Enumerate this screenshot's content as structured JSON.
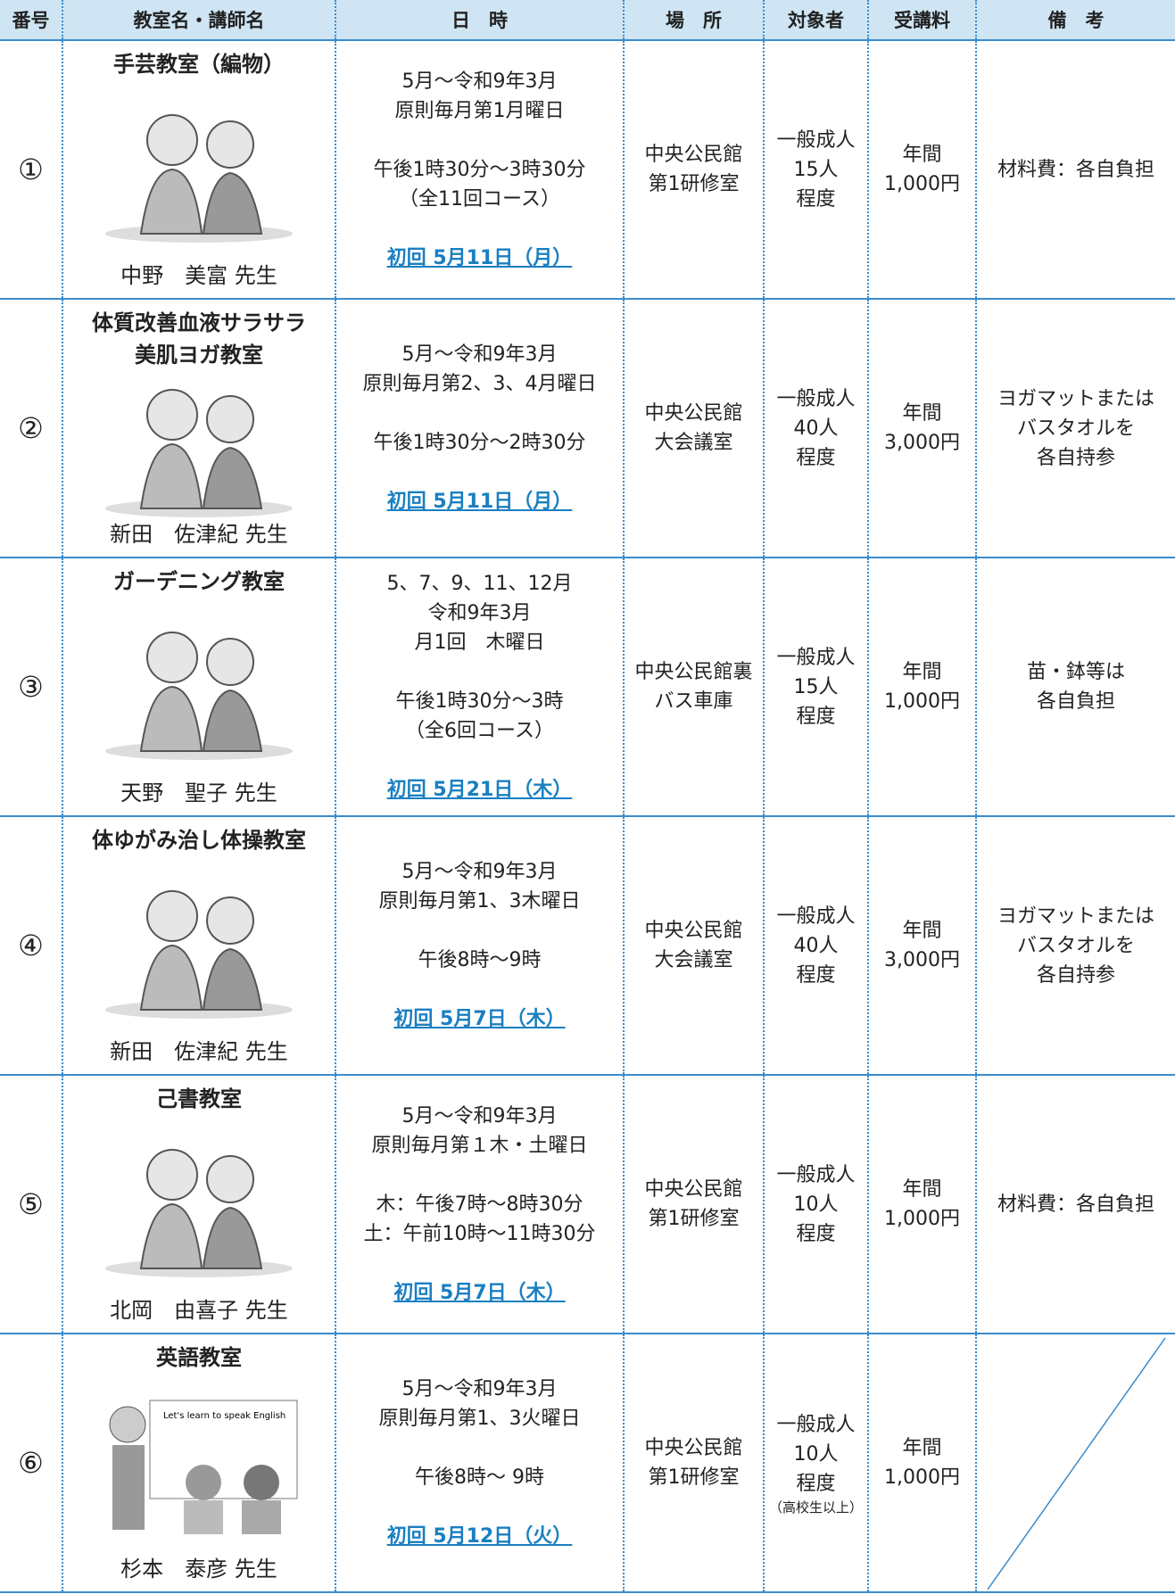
{
  "table": {
    "headers": [
      "番号",
      "教室名・講師名",
      "日　時",
      "場　所",
      "対象者",
      "受講料",
      "備　考"
    ],
    "rows": [
      {
        "number": "①",
        "title": [
          "手芸教室（編物）"
        ],
        "teacher": "中野　美富 先生",
        "schedule": [
          [
            "5月～令和9年3月",
            "原則毎月第1月曜日"
          ],
          [
            "午後1時30分～3時30分",
            "（全11回コース）"
          ]
        ],
        "first": "初回 5月11日（月）",
        "place": [
          "中央公民館",
          "第1研修室"
        ],
        "target": [
          "一般成人",
          "15人",
          "程度"
        ],
        "fee": [
          "年間",
          "1,000円"
        ],
        "notes": [
          "材料費：各自負担"
        ]
      },
      {
        "number": "②",
        "title": [
          "体質改善血液サラサラ",
          "美肌ヨガ教室"
        ],
        "teacher": "新田　佐津紀 先生",
        "schedule": [
          [
            "5月～令和9年3月",
            "原則毎月第2、3、4月曜日"
          ],
          [
            "午後1時30分～2時30分"
          ]
        ],
        "first": "初回 5月11日（月）",
        "place": [
          "中央公民館",
          "大会議室"
        ],
        "target": [
          "一般成人",
          "40人",
          "程度"
        ],
        "fee": [
          "年間",
          "3,000円"
        ],
        "notes": [
          "ヨガマットまたは",
          "バスタオルを",
          "各自持参"
        ]
      },
      {
        "number": "③",
        "title": [
          "ガーデニング教室"
        ],
        "teacher": "天野　聖子 先生",
        "schedule": [
          [
            "5、7、9、11、12月",
            "令和9年3月",
            "月1回　木曜日"
          ],
          [
            "午後1時30分～3時",
            "（全6回コース）"
          ]
        ],
        "first": "初回 5月21日（木）",
        "place": [
          "中央公民館裏",
          "バス車庫"
        ],
        "target": [
          "一般成人",
          "15人",
          "程度"
        ],
        "fee": [
          "年間",
          "1,000円"
        ],
        "notes": [
          "苗・鉢等は",
          "各自負担"
        ]
      },
      {
        "number": "④",
        "title": [
          "体ゆがみ治し体操教室"
        ],
        "teacher": "新田　佐津紀 先生",
        "schedule": [
          [
            "5月～令和9年3月",
            "原則毎月第1、3木曜日"
          ],
          [
            "午後8時～9時"
          ]
        ],
        "first": "初回 5月7日（木）",
        "place": [
          "中央公民館",
          "大会議室"
        ],
        "target": [
          "一般成人",
          "40人",
          "程度"
        ],
        "fee": [
          "年間",
          "3,000円"
        ],
        "notes": [
          "ヨガマットまたは",
          "バスタオルを",
          "各自持参"
        ]
      },
      {
        "number": "⑤",
        "title": [
          "己書教室"
        ],
        "teacher": "北岡　由喜子 先生",
        "schedule": [
          [
            "5月～令和9年3月",
            "原則毎月第１木・土曜日"
          ],
          [
            "木：午後7時～8時30分",
            "土：午前10時～11時30分"
          ]
        ],
        "first": "初回 5月7日（木）",
        "place": [
          "中央公民館",
          "第1研修室"
        ],
        "target": [
          "一般成人",
          "10人",
          "程度"
        ],
        "fee": [
          "年間",
          "1,000円"
        ],
        "notes": [
          "材料費：各自負担"
        ]
      },
      {
        "number": "⑥",
        "title": [
          "英語教室"
        ],
        "image_text": "Let's learn to speak English",
        "teacher": "杉本　泰彦 先生",
        "schedule": [
          [
            "5月～令和9年3月",
            "原則毎月第1、3火曜日"
          ],
          [
            "午後8時～ 9時"
          ]
        ],
        "first": "初回 5月12日（火）",
        "place": [
          "中央公民館",
          "第1研修室"
        ],
        "target": [
          "一般成人",
          "10人",
          "程度"
        ],
        "target_note": "（高校生以上）",
        "fee": [
          "年間",
          "1,000円"
        ]
      }
    ]
  }
}
